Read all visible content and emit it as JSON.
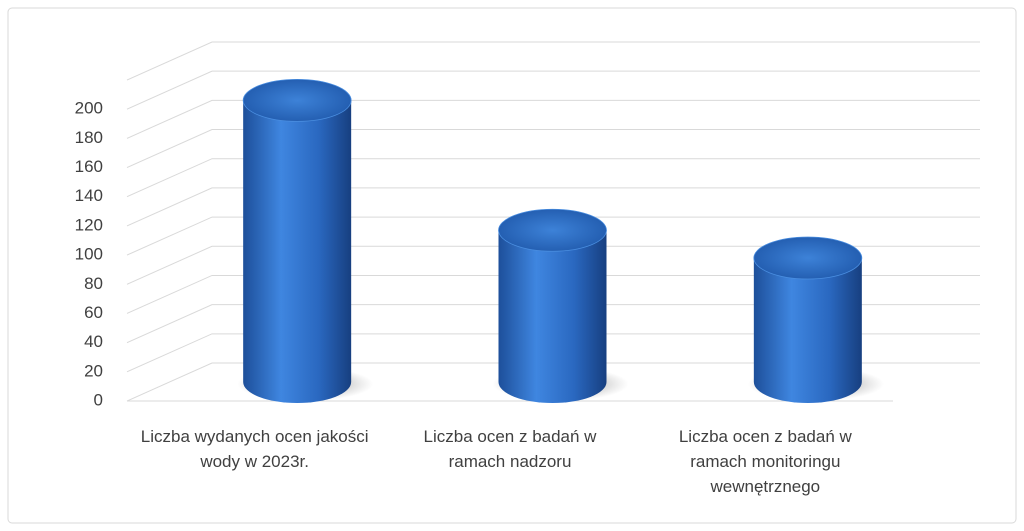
{
  "chart_data": {
    "type": "cylinder",
    "categories": [
      "Liczba wydanych ocen jakości wody w 2023r.",
      "Liczba ocen z badań w ramach nadzoru",
      "Liczba ocen z badań w ramach monitoringu wewnętrznego"
    ],
    "values": [
      193,
      104,
      85
    ],
    "color": "#2e6fc4",
    "ylim": [
      0,
      220
    ],
    "yticks": [
      0,
      20,
      40,
      60,
      80,
      100,
      120,
      140,
      160,
      180,
      200
    ],
    "grid": true
  }
}
